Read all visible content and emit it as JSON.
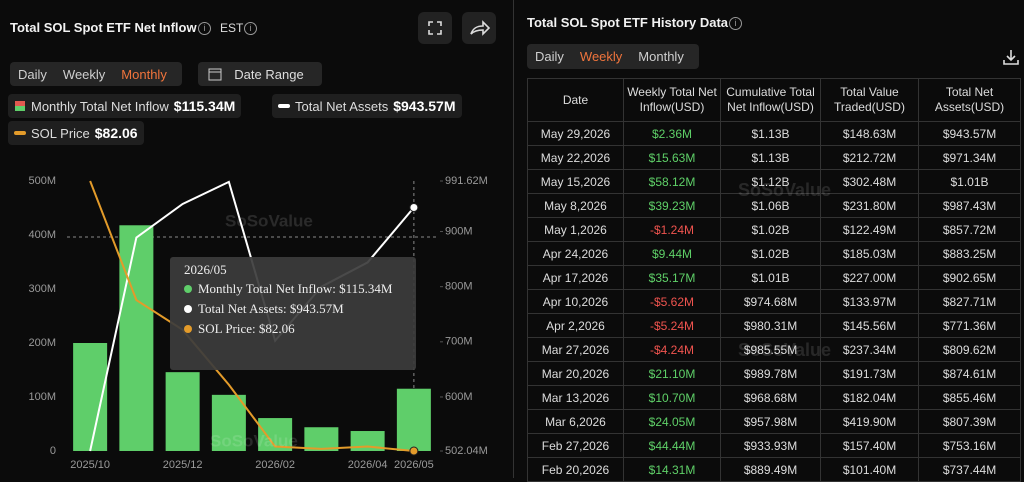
{
  "header": {
    "title": "Total SOL Spot ETF Net Inflow",
    "timezone": "EST",
    "tabs": [
      "Daily",
      "Weekly",
      "Monthly"
    ],
    "active_tab": "Monthly",
    "date_range": "Date Range"
  },
  "chart_data": {
    "type": "combo",
    "categories": [
      "2025/10",
      null,
      "2025/12",
      null,
      "2026/02",
      null,
      "2026/04",
      "2026/05"
    ],
    "series": [
      {
        "name": "Monthly Total Net Inflow",
        "type": "bar",
        "axis": "y",
        "color": "#5fce6a",
        "values": [
          200,
          418,
          146,
          104,
          61,
          44,
          37,
          115.34
        ],
        "legend_value": "$115.34M"
      },
      {
        "name": "Total Net Assets",
        "type": "line",
        "axis": "y2",
        "color": "#ffffff",
        "values": [
          502.04,
          889,
          950,
          990,
          702,
          800,
          844,
          943.57
        ],
        "legend_value": "$943.57M"
      },
      {
        "name": "SOL Price",
        "type": "line",
        "axis": "hidden",
        "color": "#e39b2a",
        "values": [
          200,
          148,
          135,
          111,
          84,
          83,
          84,
          82.06
        ],
        "legend_value": "$82.06"
      }
    ],
    "ylim": [
      0,
      500
    ],
    "yticks": [
      {
        "value": 0,
        "label": "0"
      },
      {
        "value": 100,
        "label": "100M"
      },
      {
        "value": 200,
        "label": "200M"
      },
      {
        "value": 300,
        "label": "300M"
      },
      {
        "value": 400,
        "label": "400M"
      },
      {
        "value": 500,
        "label": "500M"
      }
    ],
    "y2lim": [
      502.04,
      991.62
    ],
    "y2ticks": [
      {
        "value": 502.04,
        "label": "502.04M"
      },
      {
        "value": 600,
        "label": "600M"
      },
      {
        "value": 700,
        "label": "700M"
      },
      {
        "value": 800,
        "label": "800M"
      },
      {
        "value": 900,
        "label": "900M"
      },
      {
        "value": 991.62,
        "label": "991.62M"
      }
    ],
    "grid": false
  },
  "tooltip": {
    "title": "2026/05",
    "lines": [
      "Monthly Total Net Inflow: $115.34M",
      "Total Net Assets: $943.57M",
      "SOL Price: $82.06"
    ]
  },
  "watermark": "SoSoValue",
  "history": {
    "title": "Total SOL Spot ETF History Data",
    "tabs": [
      "Daily",
      "Weekly",
      "Monthly"
    ],
    "active_tab": "Weekly",
    "columns": [
      "Date",
      "Weekly Total Net Inflow(USD)",
      "Cumulative Total Net Inflow(USD)",
      "Total Value Traded(USD)",
      "Total Net Assets(USD)"
    ],
    "rows": [
      [
        "May 29,2026",
        "$2.36M",
        "$1.13B",
        "$148.63M",
        "$943.57M"
      ],
      [
        "May 22,2026",
        "$15.63M",
        "$1.13B",
        "$212.72M",
        "$971.34M"
      ],
      [
        "May 15,2026",
        "$58.12M",
        "$1.12B",
        "$302.48M",
        "$1.01B"
      ],
      [
        "May 8,2026",
        "$39.23M",
        "$1.06B",
        "$231.80M",
        "$987.43M"
      ],
      [
        "May 1,2026",
        "-$1.24M",
        "$1.02B",
        "$122.49M",
        "$857.72M"
      ],
      [
        "Apr 24,2026",
        "$9.44M",
        "$1.02B",
        "$185.03M",
        "$883.25M"
      ],
      [
        "Apr 17,2026",
        "$35.17M",
        "$1.01B",
        "$227.00M",
        "$902.65M"
      ],
      [
        "Apr 10,2026",
        "-$5.62M",
        "$974.68M",
        "$133.97M",
        "$827.71M"
      ],
      [
        "Apr 2,2026",
        "-$5.24M",
        "$980.31M",
        "$145.56M",
        "$771.36M"
      ],
      [
        "Mar 27,2026",
        "-$4.24M",
        "$985.55M",
        "$237.34M",
        "$809.62M"
      ],
      [
        "Mar 20,2026",
        "$21.10M",
        "$989.78M",
        "$191.73M",
        "$874.61M"
      ],
      [
        "Mar 13,2026",
        "$10.70M",
        "$968.68M",
        "$182.04M",
        "$855.46M"
      ],
      [
        "Mar 6,2026",
        "$24.05M",
        "$957.98M",
        "$419.90M",
        "$807.39M"
      ],
      [
        "Feb 27,2026",
        "$44.44M",
        "$933.93M",
        "$157.40M",
        "$753.16M"
      ],
      [
        "Feb 20,2026",
        "$14.31M",
        "$889.49M",
        "$101.40M",
        "$737.44M"
      ]
    ]
  }
}
